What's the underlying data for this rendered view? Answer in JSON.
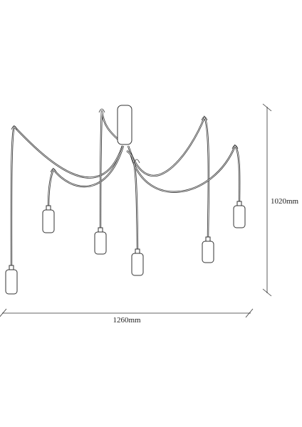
{
  "dimensions": {
    "height": "1020mm",
    "width": "1260mm"
  }
}
